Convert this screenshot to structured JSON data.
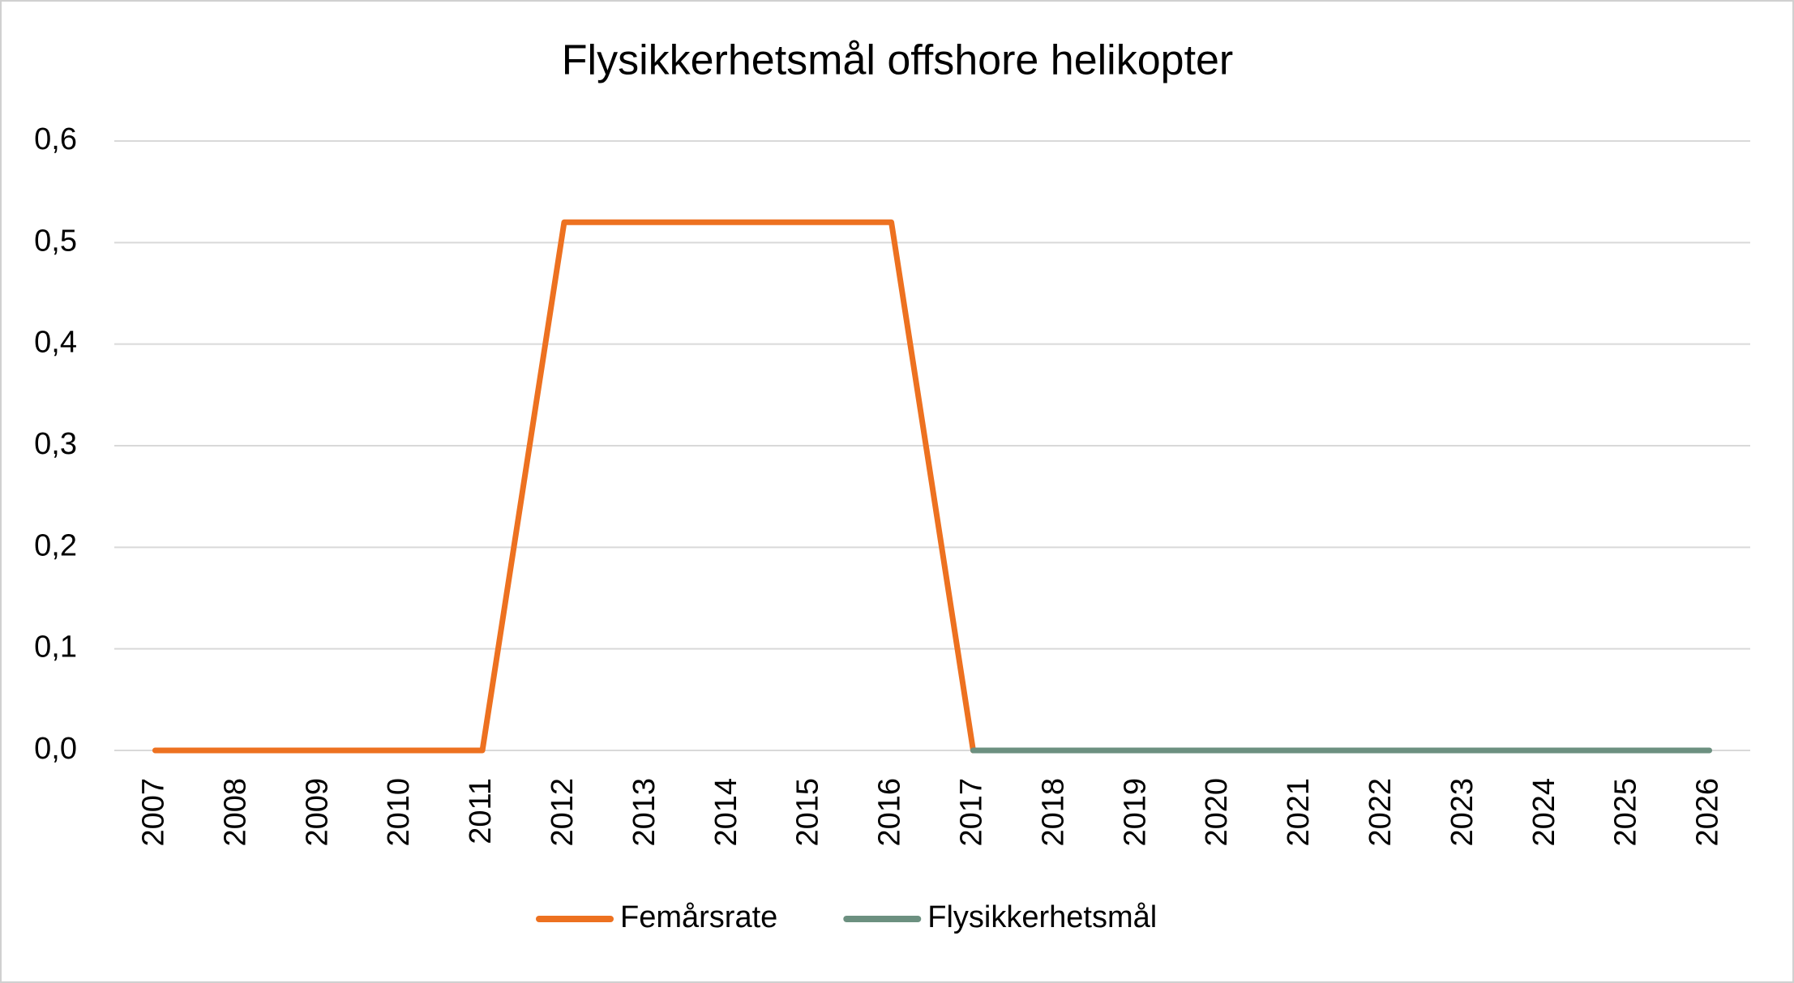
{
  "chart_data": {
    "type": "line",
    "title": "Flysikkerhetsmål offshore helikopter",
    "categories": [
      "2007",
      "2008",
      "2009",
      "2010",
      "2011",
      "2012",
      "2013",
      "2014",
      "2015",
      "2016",
      "2017",
      "2018",
      "2019",
      "2020",
      "2021",
      "2022",
      "2023",
      "2024",
      "2025",
      "2026"
    ],
    "series": [
      {
        "name": "Femårsrate",
        "color": "#ed7120",
        "values": [
          0,
          0,
          0,
          0,
          0,
          0.52,
          0.52,
          0.52,
          0.52,
          0.52,
          0,
          null,
          null,
          null,
          null,
          null,
          null,
          null,
          null,
          null
        ]
      },
      {
        "name": "Flysikkerhetsmål",
        "color": "#6c9080",
        "values": [
          null,
          null,
          null,
          null,
          null,
          null,
          null,
          null,
          null,
          null,
          0,
          0,
          0,
          0,
          0,
          0,
          0,
          0,
          0,
          0
        ]
      }
    ],
    "ylim": [
      0,
      0.6
    ],
    "yticks": [
      {
        "value": 0,
        "label": "0,0"
      },
      {
        "value": 0.1,
        "label": "0,1"
      },
      {
        "value": 0.2,
        "label": "0,2"
      },
      {
        "value": 0.3,
        "label": "0,3"
      },
      {
        "value": 0.4,
        "label": "0,4"
      },
      {
        "value": 0.5,
        "label": "0,5"
      },
      {
        "value": 0.6,
        "label": "0,6"
      }
    ],
    "grid": true,
    "legend": "bottom"
  }
}
